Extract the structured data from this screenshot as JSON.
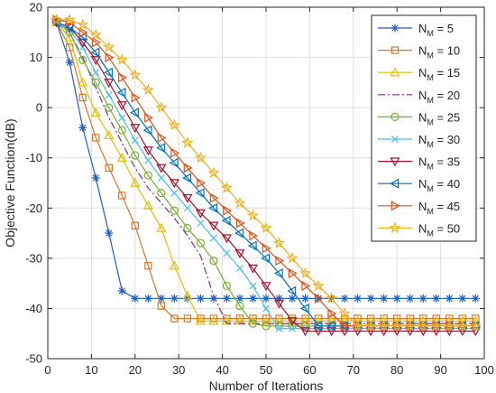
{
  "chart_data": {
    "type": "line",
    "title": "",
    "xlabel": "Number of Iterations",
    "ylabel": "Objective Function(dB)",
    "xlim": [
      0,
      100
    ],
    "ylim": [
      -50,
      20
    ],
    "xticks": [
      0,
      10,
      20,
      30,
      40,
      50,
      60,
      70,
      80,
      90,
      100
    ],
    "yticks": [
      -50,
      -40,
      -30,
      -20,
      -10,
      0,
      10,
      20
    ],
    "xtick_labels": [
      "0",
      "10",
      "20",
      "30",
      "40",
      "50",
      "60",
      "70",
      "80",
      "90",
      "100"
    ],
    "ytick_labels": [
      "-50",
      "-40",
      "-30",
      "-20",
      "-10",
      "0",
      "10",
      "20"
    ],
    "grid": true,
    "legend_position": "top-right",
    "x": [
      2,
      5,
      8,
      11,
      14,
      17,
      20,
      23,
      26,
      29,
      32,
      35,
      38,
      41,
      44,
      47,
      50,
      53,
      56,
      59,
      62,
      65,
      68,
      71,
      74,
      77,
      80,
      83,
      86,
      89,
      92,
      95,
      98
    ],
    "series": [
      {
        "name": "N = 5",
        "label_main": "N",
        "label_sub": "M",
        "label_rest": " = 5",
        "color": "#1f5fbf",
        "marker": "asterisk",
        "dash": "",
        "values": [
          17,
          9,
          -4,
          -14,
          -25,
          -36.5,
          -38,
          -38,
          -38,
          -38,
          -38,
          -38,
          -38,
          -38,
          -38,
          -38,
          -38,
          -38,
          -38,
          -38,
          -38,
          -38,
          -38,
          -38,
          -38,
          -38,
          -38,
          -38,
          -38,
          -38,
          -38,
          -38,
          -38
        ]
      },
      {
        "name": "N = 10",
        "label_main": "N",
        "label_sub": "M",
        "label_rest": " = 10",
        "color": "#d4772c",
        "marker": "square",
        "dash": "",
        "values": [
          17,
          12,
          2,
          -6,
          -12,
          -17.5,
          -23.5,
          -31.5,
          -39.5,
          -42,
          -42,
          -42,
          -42,
          -42,
          -42,
          -42,
          -42,
          -42,
          -42,
          -42,
          -42,
          -42,
          -42,
          -42,
          -42,
          -42,
          -42,
          -42,
          -42,
          -42,
          -42,
          -42,
          -42
        ]
      },
      {
        "name": "N = 15",
        "label_main": "N",
        "label_sub": "M",
        "label_rest": " = 15",
        "color": "#e0be00",
        "marker": "triangle-up",
        "dash": "",
        "values": [
          17,
          14,
          5,
          -1,
          -5.5,
          -10,
          -15,
          -19.5,
          -24,
          -31.5,
          -37.5,
          -42.5,
          -42.5,
          -42.5,
          -42.5,
          -42.5,
          -42.5,
          -42.5,
          -42.5,
          -42.5,
          -42.5,
          -42.5,
          -42.5,
          -42.5,
          -42.5,
          -42.5,
          -42.5,
          -42.5,
          -42.5,
          -42.5,
          -42.5,
          -42.5,
          -42.5
        ]
      },
      {
        "name": "N = 20",
        "label_main": "N",
        "label_sub": "M",
        "label_rest": " = 20",
        "color": "#7b2d8e",
        "marker": "none",
        "dash": "8,3,2,3",
        "values": [
          17,
          15,
          10,
          4,
          -2,
          -7,
          -12,
          -16,
          -19,
          -22,
          -25.5,
          -29.5,
          -37.5,
          -43,
          -43,
          -43,
          -43,
          -43,
          -43,
          -43,
          -43,
          -43,
          -43,
          -43,
          -43,
          -43,
          -43,
          -43,
          -43,
          -43,
          -43,
          -43,
          -43
        ]
      },
      {
        "name": "N = 25",
        "label_main": "N",
        "label_sub": "M",
        "label_rest": " = 25",
        "color": "#77ac30",
        "marker": "circle",
        "dash": "",
        "values": [
          17,
          15,
          9.5,
          5,
          0,
          -4.5,
          -9.5,
          -13.5,
          -17,
          -20.5,
          -24,
          -27,
          -30.5,
          -35.5,
          -39.5,
          -43,
          -43.5,
          -43.5,
          -43.5,
          -43.5,
          -43.5,
          -43.5,
          -43.5,
          -43.5,
          -43.5,
          -43.5,
          -43.5,
          -43.5,
          -43.5,
          -43.5,
          -43.5,
          -43.5,
          -43.5
        ]
      },
      {
        "name": "N = 30",
        "label_main": "N",
        "label_sub": "M",
        "label_rest": " = 30",
        "color": "#4dbeee",
        "marker": "x",
        "dash": "",
        "values": [
          17,
          15.5,
          12,
          7,
          2.5,
          -2,
          -6.5,
          -10.5,
          -14,
          -17,
          -20,
          -23,
          -26,
          -29,
          -32,
          -35.5,
          -40,
          -44,
          -44,
          -44,
          -44,
          -44,
          -44,
          -44,
          -44,
          -44,
          -44,
          -44,
          -44,
          -44,
          -44,
          -44,
          -44
        ]
      },
      {
        "name": "N = 35",
        "label_main": "N",
        "label_sub": "M",
        "label_rest": " = 35",
        "color": "#a2142f",
        "marker": "triangle-down",
        "dash": "",
        "values": [
          17,
          16,
          13,
          9.5,
          5,
          0.5,
          -4,
          -8.5,
          -12,
          -15,
          -18,
          -21,
          -23.5,
          -26,
          -29,
          -32,
          -35.5,
          -39,
          -42.5,
          -44.5,
          -44.5,
          -44.5,
          -44.5,
          -44.5,
          -44.5,
          -44.5,
          -44.5,
          -44.5,
          -44.5,
          -44.5,
          -44.5,
          -44.5,
          -44.5
        ]
      },
      {
        "name": "N = 40",
        "label_main": "N",
        "label_sub": "M",
        "label_rest": " = 40",
        "color": "#0072bd",
        "marker": "triangle-left",
        "dash": "",
        "values": [
          17,
          16,
          14,
          11,
          7,
          3,
          -1,
          -4.5,
          -8,
          -11,
          -14,
          -17,
          -20,
          -22.5,
          -25,
          -27.5,
          -30,
          -33,
          -36.5,
          -40,
          -43.5,
          -43.5,
          -43.5,
          -43.5,
          -43.5,
          -43.5,
          -43.5,
          -43.5,
          -43.5,
          -43.5,
          -43.5,
          -43.5,
          -43.5
        ]
      },
      {
        "name": "N = 45",
        "label_main": "N",
        "label_sub": "M",
        "label_rest": " = 45",
        "color": "#d95319",
        "marker": "triangle-right",
        "dash": "",
        "values": [
          17.5,
          17,
          15,
          13,
          10,
          6,
          2,
          -2,
          -6,
          -9,
          -12,
          -15,
          -18,
          -20.5,
          -23,
          -25.5,
          -28,
          -30.5,
          -33,
          -35.5,
          -38,
          -41,
          -43.5,
          -43.5,
          -43.5,
          -43.5,
          -43.5,
          -43.5,
          -43.5,
          -43.5,
          -43.5,
          -43.5,
          -43.5
        ]
      },
      {
        "name": "N = 50",
        "label_main": "N",
        "label_sub": "M",
        "label_rest": " = 50",
        "color": "#edb120",
        "marker": "star",
        "dash": "",
        "values": [
          17.5,
          17.5,
          16.5,
          14.5,
          12,
          9.5,
          6.5,
          3.5,
          0,
          -3.5,
          -7,
          -10,
          -13,
          -16,
          -19,
          -21.5,
          -24,
          -27,
          -30,
          -33,
          -35.5,
          -38,
          -41,
          -43.5,
          -43.5,
          -43.5,
          -43.5,
          -43.5,
          -43.5,
          -43.5,
          -43.5,
          -43.5,
          -43.5
        ]
      }
    ]
  }
}
